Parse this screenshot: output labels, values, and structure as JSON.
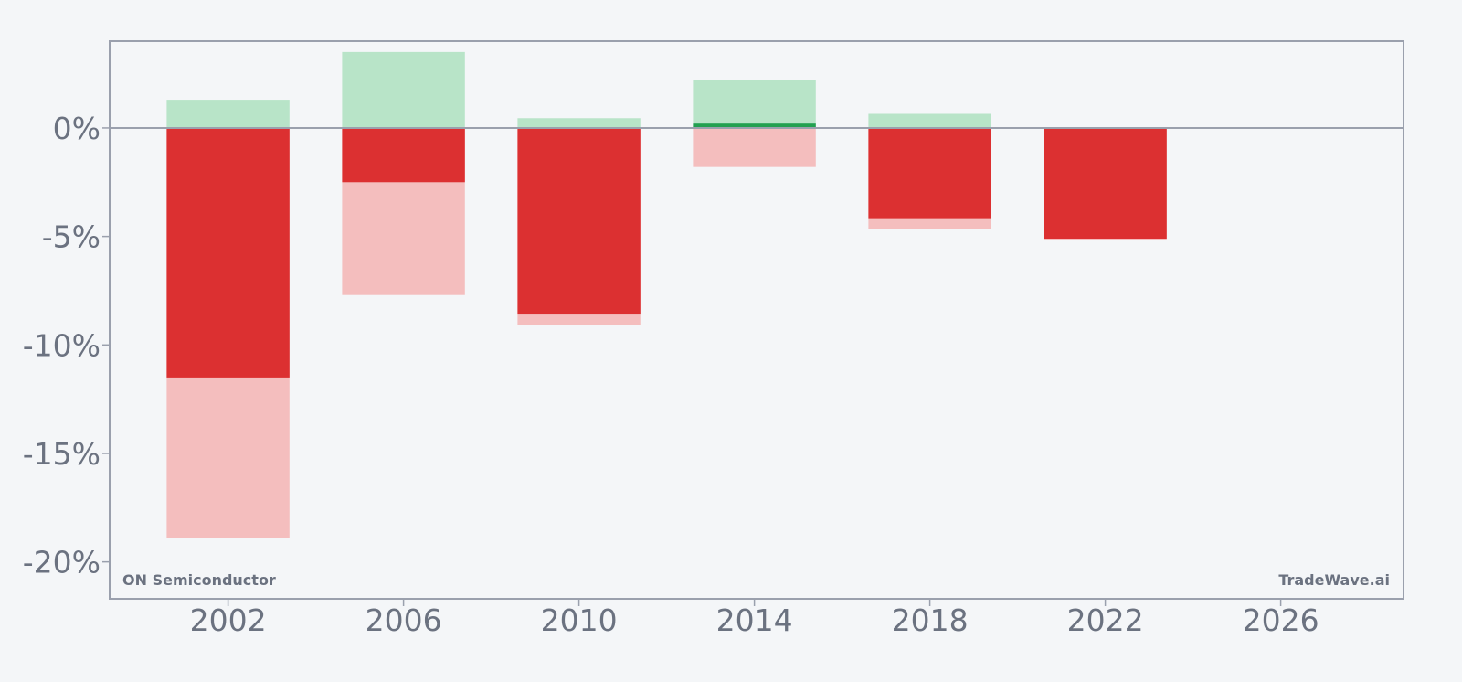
{
  "chart_data": {
    "type": "bar",
    "x": [
      2002,
      2006,
      2010,
      2014,
      2018,
      2022
    ],
    "series": [
      {
        "values": [
          -11.5,
          -2.5,
          -8.6,
          0.2,
          -4.2,
          -5.1
        ]
      },
      {
        "values": [
          1.3,
          3.5,
          0.45,
          2.2,
          0.65,
          0.0
        ]
      },
      {
        "values": [
          -18.9,
          -7.7,
          -9.1,
          -1.8,
          -4.65,
          -5.15
        ]
      }
    ],
    "xlim": [
      1999.3,
      2028.8
    ],
    "ylim": [
      -21.7,
      4.0
    ],
    "xticks": [
      2002,
      2006,
      2010,
      2014,
      2018,
      2022,
      2026
    ],
    "yticks": [
      0,
      -5,
      -10,
      -15,
      -20
    ],
    "xtick_labels": [
      "2002",
      "2006",
      "2010",
      "2014",
      "2018",
      "2022",
      "2026"
    ],
    "ytick_labels": [
      "0%",
      "-5%",
      "-10%",
      "-15%",
      "-20%"
    ],
    "grid": false,
    "annotations": {
      "left": "ON Semiconductor",
      "right": "TradeWave.ai"
    },
    "colors": {
      "negative_main": "#dc3031",
      "negative_light": "#f4bebe",
      "positive_main": "#22a050",
      "positive_light": "#b8e4c8",
      "axis": "#9aa0ad",
      "text": "#6b7280"
    }
  }
}
